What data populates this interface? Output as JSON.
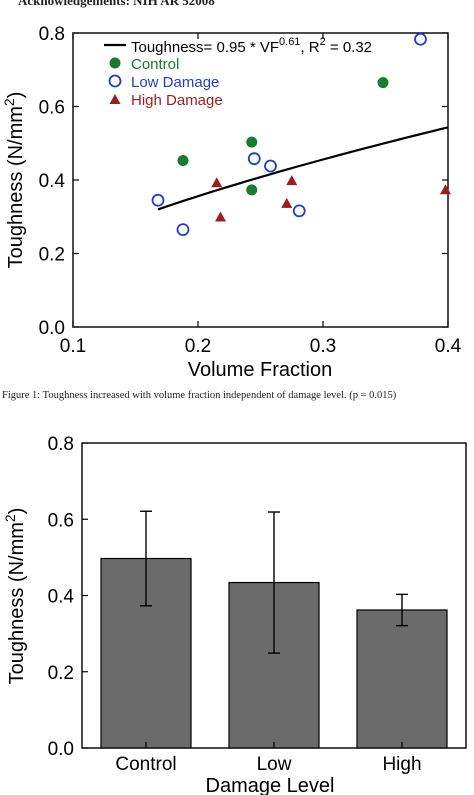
{
  "header_text": "Acknowledgements: NIH AR 52008",
  "figure1_caption": "Figure 1: Toughness increased with volume fraction independent of damage level. (p = 0.015)",
  "chart_data": [
    {
      "type": "scatter",
      "title": "",
      "xlabel": "Volume Fraction",
      "ylabel": "Toughness (N/mm²)",
      "xlim": [
        0.1,
        0.4
      ],
      "ylim": [
        0.0,
        0.8
      ],
      "xticks": [
        "0.1",
        "0.2",
        "0.3",
        "0.4"
      ],
      "yticks": [
        "0.0",
        "0.2",
        "0.4",
        "0.6",
        "0.8"
      ],
      "legend_position": "top-left",
      "fit": {
        "label": "Toughness= 0.95 * VF^0.61, R² = 0.32",
        "label_base": "Toughness= 0.95 * VF",
        "label_exp": "0.61",
        "label_mid": ", R",
        "label_r2exp": "2",
        "label_end": " = 0.32",
        "coefficient": 0.95,
        "exponent": 0.61,
        "x_range": [
          0.168,
          0.4
        ],
        "color": "#000000"
      },
      "series": [
        {
          "name": "Control",
          "marker": "filled-circle",
          "color": "#1a7a2e",
          "points": [
            [
              0.188,
              0.453
            ],
            [
              0.243,
              0.503
            ],
            [
              0.243,
              0.373
            ],
            [
              0.348,
              0.665
            ]
          ]
        },
        {
          "name": "Low Damage",
          "marker": "open-circle",
          "color": "#1f3fc8",
          "points": [
            [
              0.168,
              0.345
            ],
            [
              0.188,
              0.265
            ],
            [
              0.245,
              0.458
            ],
            [
              0.258,
              0.438
            ],
            [
              0.281,
              0.316
            ],
            [
              0.378,
              0.783
            ]
          ]
        },
        {
          "name": "High Damage",
          "marker": "triangle",
          "color": "#9a1f1f",
          "points": [
            [
              0.215,
              0.391
            ],
            [
              0.218,
              0.298
            ],
            [
              0.271,
              0.335
            ],
            [
              0.275,
              0.397
            ],
            [
              0.398,
              0.372
            ]
          ]
        }
      ]
    },
    {
      "type": "bar",
      "title": "",
      "xlabel": "Damage Level",
      "ylabel": "Toughness (N/mm²)",
      "ylim": [
        0.0,
        0.8
      ],
      "yticks": [
        "0.0",
        "0.2",
        "0.4",
        "0.6",
        "0.8"
      ],
      "categories": [
        "Control",
        "Low",
        "High"
      ],
      "values": [
        0.497,
        0.434,
        0.362
      ],
      "error_low": [
        0.373,
        0.249,
        0.321
      ],
      "error_high": [
        0.621,
        0.619,
        0.403
      ],
      "bar_color": "#6b6b6b"
    }
  ]
}
